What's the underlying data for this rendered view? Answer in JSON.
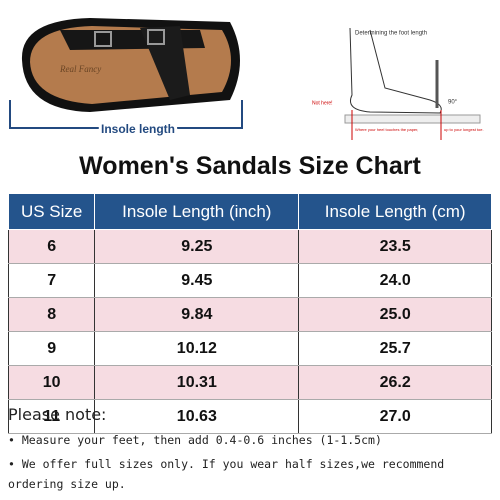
{
  "images": {
    "sandal": {
      "brand": "Real Fancy",
      "label": "Insole length"
    },
    "diagram": {
      "title": "Determining the foot length",
      "warning": "Not here!",
      "angle": "90°",
      "caption_1": "Where your heel touches the paper,",
      "caption_2": "up to your longest toe."
    }
  },
  "header": {
    "title": "Women's Sandals Size Chart"
  },
  "table": {
    "columns": [
      "US Size",
      "Insole Length (inch)",
      "Insole Length (cm)"
    ],
    "rows": [
      [
        "6",
        "9.25",
        "23.5"
      ],
      [
        "7",
        "9.45",
        "24.0"
      ],
      [
        "8",
        "9.84",
        "25.0"
      ],
      [
        "9",
        "10.12",
        "25.7"
      ],
      [
        "10",
        "10.31",
        "26.2"
      ],
      [
        "11",
        "10.63",
        "27.0"
      ]
    ]
  },
  "notes": {
    "heading": "Please note:",
    "items": [
      "• Measure your feet, then add 0.4-0.6 inches (1-1.5cm)",
      "• We offer full sizes only. If you wear half sizes,we recommend ordering size up."
    ]
  }
}
